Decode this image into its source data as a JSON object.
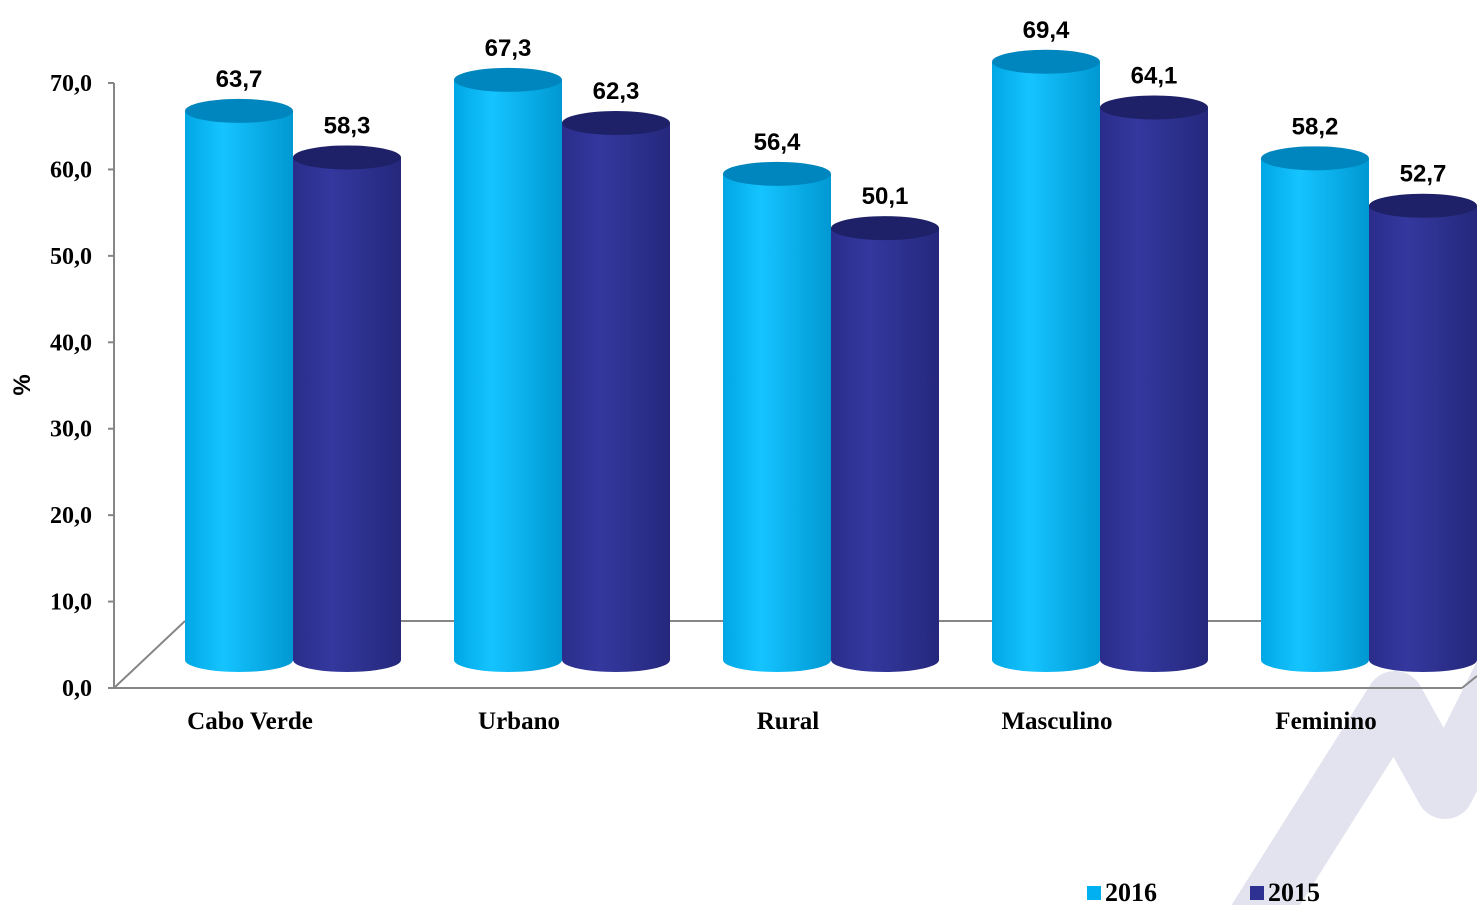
{
  "chart_data": {
    "type": "bar",
    "title": "",
    "xlabel": "",
    "ylabel": "%",
    "ylim": [
      0,
      70
    ],
    "yticks": [
      "0,0",
      "10,0",
      "20,0",
      "30,0",
      "40,0",
      "50,0",
      "60,0",
      "70,0"
    ],
    "categories": [
      "Cabo Verde",
      "Urbano",
      "Rural",
      "Masculino",
      "Feminino"
    ],
    "series": [
      {
        "name": "2016",
        "values": [
          63.7,
          67.3,
          56.4,
          69.4,
          58.2
        ],
        "labels": [
          "63,7",
          "67,3",
          "56,4",
          "69,4",
          "58,2"
        ],
        "color": "#00B0F0"
      },
      {
        "name": "2015",
        "values": [
          58.3,
          62.3,
          50.1,
          64.1,
          52.7
        ],
        "labels": [
          "58,3",
          "62,3",
          "50,1",
          "64,1",
          "52,7"
        ],
        "color": "#2E3192"
      }
    ],
    "legend": "bottom-right",
    "style": "3d-cylinder",
    "grid": false
  }
}
